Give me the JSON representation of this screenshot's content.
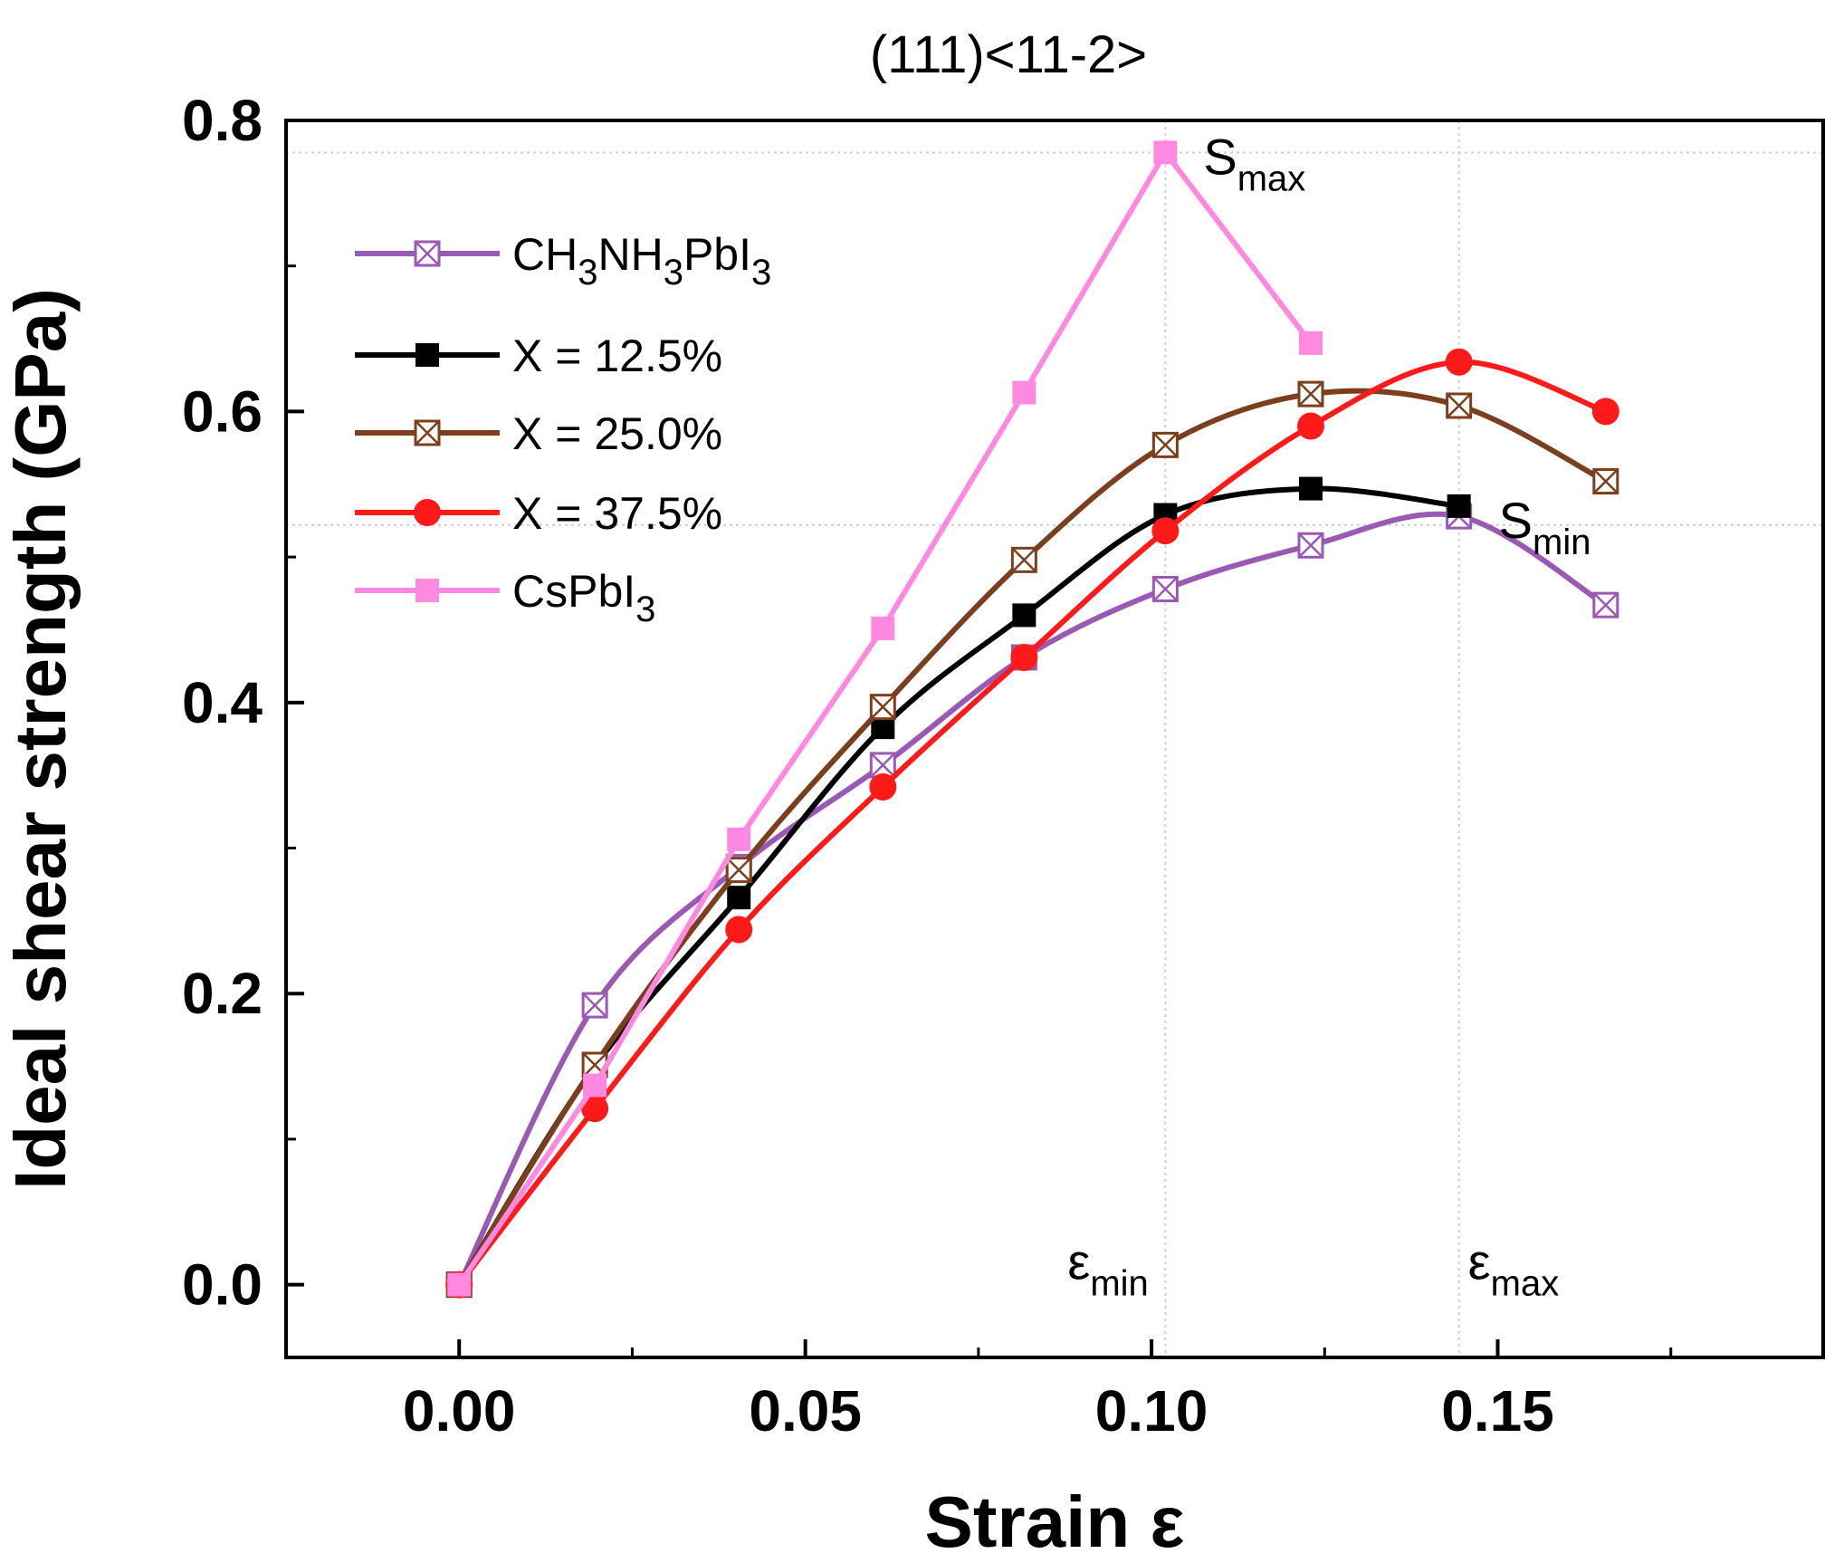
{
  "chart_data": {
    "type": "line",
    "title": "(111)<11-2>",
    "xlabel": "Strain ε",
    "ylabel": "Ideal shear strength (GPa)",
    "xlim": [
      -0.025,
      0.197
    ],
    "ylim": [
      -0.05,
      0.8
    ],
    "xticks": [
      0.0,
      0.05,
      0.1,
      0.15
    ],
    "xtick_labels": [
      "0.00",
      "0.05",
      "0.10",
      "0.15"
    ],
    "yticks": [
      0.0,
      0.2,
      0.4,
      0.6,
      0.8
    ],
    "ytick_labels": [
      "0.0",
      "0.2",
      "0.4",
      "0.6",
      "0.8"
    ],
    "legend_position": "top-left",
    "series": [
      {
        "name": "CH3NH3PbI3",
        "label_main": "CH",
        "label_parts": [
          "CH",
          "3",
          "NH",
          "3",
          "PbI",
          "3"
        ],
        "color": "#9b59b6",
        "marker": "open-square-x",
        "smooth": true,
        "x": [
          0.0,
          0.0196,
          0.0404,
          0.0612,
          0.0816,
          0.102,
          0.123,
          0.1444,
          0.1656
        ],
        "y": [
          0.0,
          0.192,
          0.287,
          0.357,
          0.431,
          0.478,
          0.508,
          0.528,
          0.467
        ]
      },
      {
        "name": "X = 12.5%",
        "color": "#000000",
        "marker": "filled-square",
        "smooth": true,
        "x": [
          0.0,
          0.0196,
          0.0404,
          0.0612,
          0.0816,
          0.102,
          0.123,
          0.1444
        ],
        "y": [
          0.0,
          0.15,
          0.266,
          0.383,
          0.46,
          0.529,
          0.547,
          0.535
        ]
      },
      {
        "name": "X = 25.0%",
        "color": "#7b3f1d",
        "marker": "open-square-x",
        "smooth": true,
        "x": [
          0.0,
          0.0196,
          0.0404,
          0.0612,
          0.0816,
          0.102,
          0.123,
          0.1444,
          0.1656
        ],
        "y": [
          0.0,
          0.151,
          0.285,
          0.397,
          0.498,
          0.577,
          0.612,
          0.604,
          0.552
        ]
      },
      {
        "name": "X = 37.5%",
        "color": "#ff1a1a",
        "marker": "filled-circle",
        "smooth": true,
        "x": [
          0.0,
          0.0196,
          0.0404,
          0.0612,
          0.0816,
          0.102,
          0.123,
          0.1444,
          0.1656
        ],
        "y": [
          0.0,
          0.121,
          0.244,
          0.342,
          0.431,
          0.518,
          0.59,
          0.634,
          0.6
        ]
      },
      {
        "name": "CsPbI3",
        "label_parts": [
          "CsPbI",
          "3"
        ],
        "color": "#ff88e0",
        "marker": "filled-square",
        "smooth": false,
        "x": [
          0.0,
          0.0196,
          0.0404,
          0.0612,
          0.0816,
          0.102,
          0.123
        ],
        "y": [
          0.0,
          0.137,
          0.306,
          0.451,
          0.613,
          0.778,
          0.647
        ]
      }
    ],
    "reference_lines": {
      "h": [
        0.778,
        0.522
      ],
      "v": [
        0.102,
        0.1444
      ]
    },
    "annotations": [
      {
        "main": "S",
        "sub": "max",
        "x": 0.102,
        "y": 0.778
      },
      {
        "main": "S",
        "sub": "min",
        "x": 0.1444,
        "y": 0.528
      },
      {
        "main": "ε",
        "sub": "min",
        "x": 0.102,
        "y": 0.0
      },
      {
        "main": "ε",
        "sub": "max",
        "x": 0.1444,
        "y": 0.0
      }
    ]
  }
}
